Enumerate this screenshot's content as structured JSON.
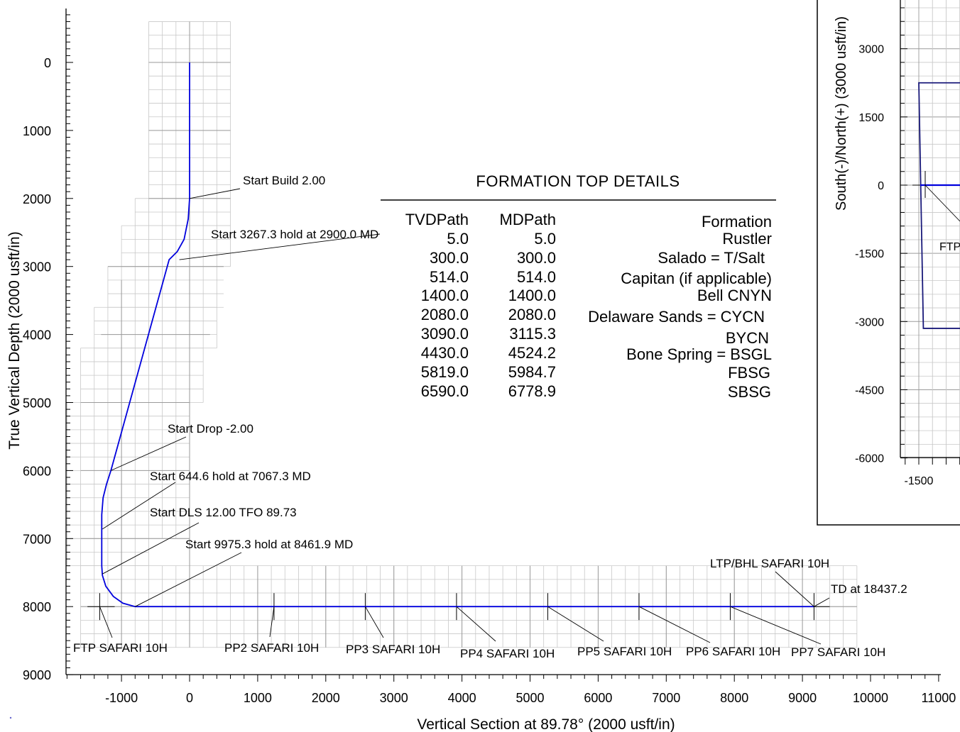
{
  "chart_data": [
    {
      "type": "line",
      "xlabel": "Vertical Section at 89.78° (2000 usft/in)",
      "ylabel": "True Vertical Depth (2000 usft/in)",
      "xlim": [
        -1800,
        11000
      ],
      "ylim": [
        9000,
        -800
      ],
      "y_inverted": true,
      "x_ticks": [
        -1000,
        0,
        1000,
        2000,
        3000,
        4000,
        5000,
        6000,
        7000,
        8000,
        9000,
        10000,
        11000
      ],
      "y_ticks": [
        0,
        1000,
        2000,
        3000,
        4000,
        5000,
        6000,
        7000,
        8000,
        9000
      ],
      "grid": true,
      "series_color": "#0000dd",
      "series": [
        {
          "x": [
            0,
            0,
            -20,
            -80,
            -180,
            -300,
            -1155,
            -1220,
            -1270,
            -1290,
            -1290,
            -1280,
            -1230,
            -1120,
            -980,
            -800,
            9170
          ],
          "y": [
            0,
            2000,
            2300,
            2600,
            2780,
            2900,
            6000,
            6200,
            6400,
            6650,
            7400,
            7540,
            7700,
            7850,
            7950,
            8000,
            8000
          ]
        }
      ],
      "annotations": [
        {
          "text": "Start Build 2.00",
          "x": 0,
          "y": 2000
        },
        {
          "text": "Start 3267.3 hold at 2900.0 MD",
          "x": -150,
          "y": 2900
        },
        {
          "text": "Start Drop -2.00",
          "x": -1155,
          "y": 6000
        },
        {
          "text": "Start 644.6 hold at 7067.3 MD",
          "x": -1280,
          "y": 6860
        },
        {
          "text": "Start DLS 12.00 TFO 89.73",
          "x": -1280,
          "y": 7520
        },
        {
          "text": "Start 9975.3 hold at 8461.9 MD",
          "x": -800,
          "y": 8000
        },
        {
          "text": "LTP/BHL SAFARI 10H",
          "x": 9170,
          "y": 8000
        },
        {
          "text": "TD at 18437.2",
          "x": 9170,
          "y": 8000
        },
        {
          "text": "FTP SAFARI 10H",
          "x": -1320,
          "y": 8000
        },
        {
          "text": "PP2 SAFARI 10H",
          "x": 1240,
          "y": 8000
        },
        {
          "text": "PP3 SAFARI 10H",
          "x": 2580,
          "y": 8000
        },
        {
          "text": "PP4 SAFARI 10H",
          "x": 3920,
          "y": 8000
        },
        {
          "text": "PP5 SAFARI 10H",
          "x": 5260,
          "y": 8000
        },
        {
          "text": "PP6 SAFARI 10H",
          "x": 6600,
          "y": 8000
        },
        {
          "text": "PP7 SAFARI 10H",
          "x": 7940,
          "y": 8000
        }
      ],
      "markers_x": [
        -1320,
        1240,
        2580,
        3920,
        5260,
        6600,
        7940,
        9170
      ]
    },
    {
      "type": "line",
      "ylabel": "South(-)/North(+) (3000 usft/in)",
      "y_ticks": [
        3000,
        1500,
        0,
        -1500,
        -3000,
        -4500,
        -6000
      ],
      "x_ticks": [
        -1500
      ],
      "grid": true,
      "annotations": [
        {
          "text": "FTP"
        }
      ],
      "lease_outline": {
        "x": [
          -1500,
          -1400
        ],
        "y_top": 2250,
        "y_bottom": -3150
      }
    }
  ],
  "table": {
    "title": "FORMATION TOP DETAILS",
    "headers": [
      "TVDPath",
      "MDPath",
      "Formation"
    ],
    "rows": [
      [
        "5.0",
        "5.0",
        "Rustler"
      ],
      [
        "300.0",
        "300.0",
        "Salado = T/Salt"
      ],
      [
        "514.0",
        "514.0",
        "Capitan (if applicable)"
      ],
      [
        "1400.0",
        "1400.0",
        "Bell CNYN"
      ],
      [
        "2080.0",
        "2080.0",
        "Delaware Sands = CYCN"
      ],
      [
        "3090.0",
        "3115.3",
        "BYCN"
      ],
      [
        "4430.0",
        "4524.2",
        "Bone Spring = BSGL"
      ],
      [
        "5819.0",
        "5984.7",
        "FBSG"
      ],
      [
        "6590.0",
        "6778.9",
        "SBSG"
      ]
    ]
  }
}
